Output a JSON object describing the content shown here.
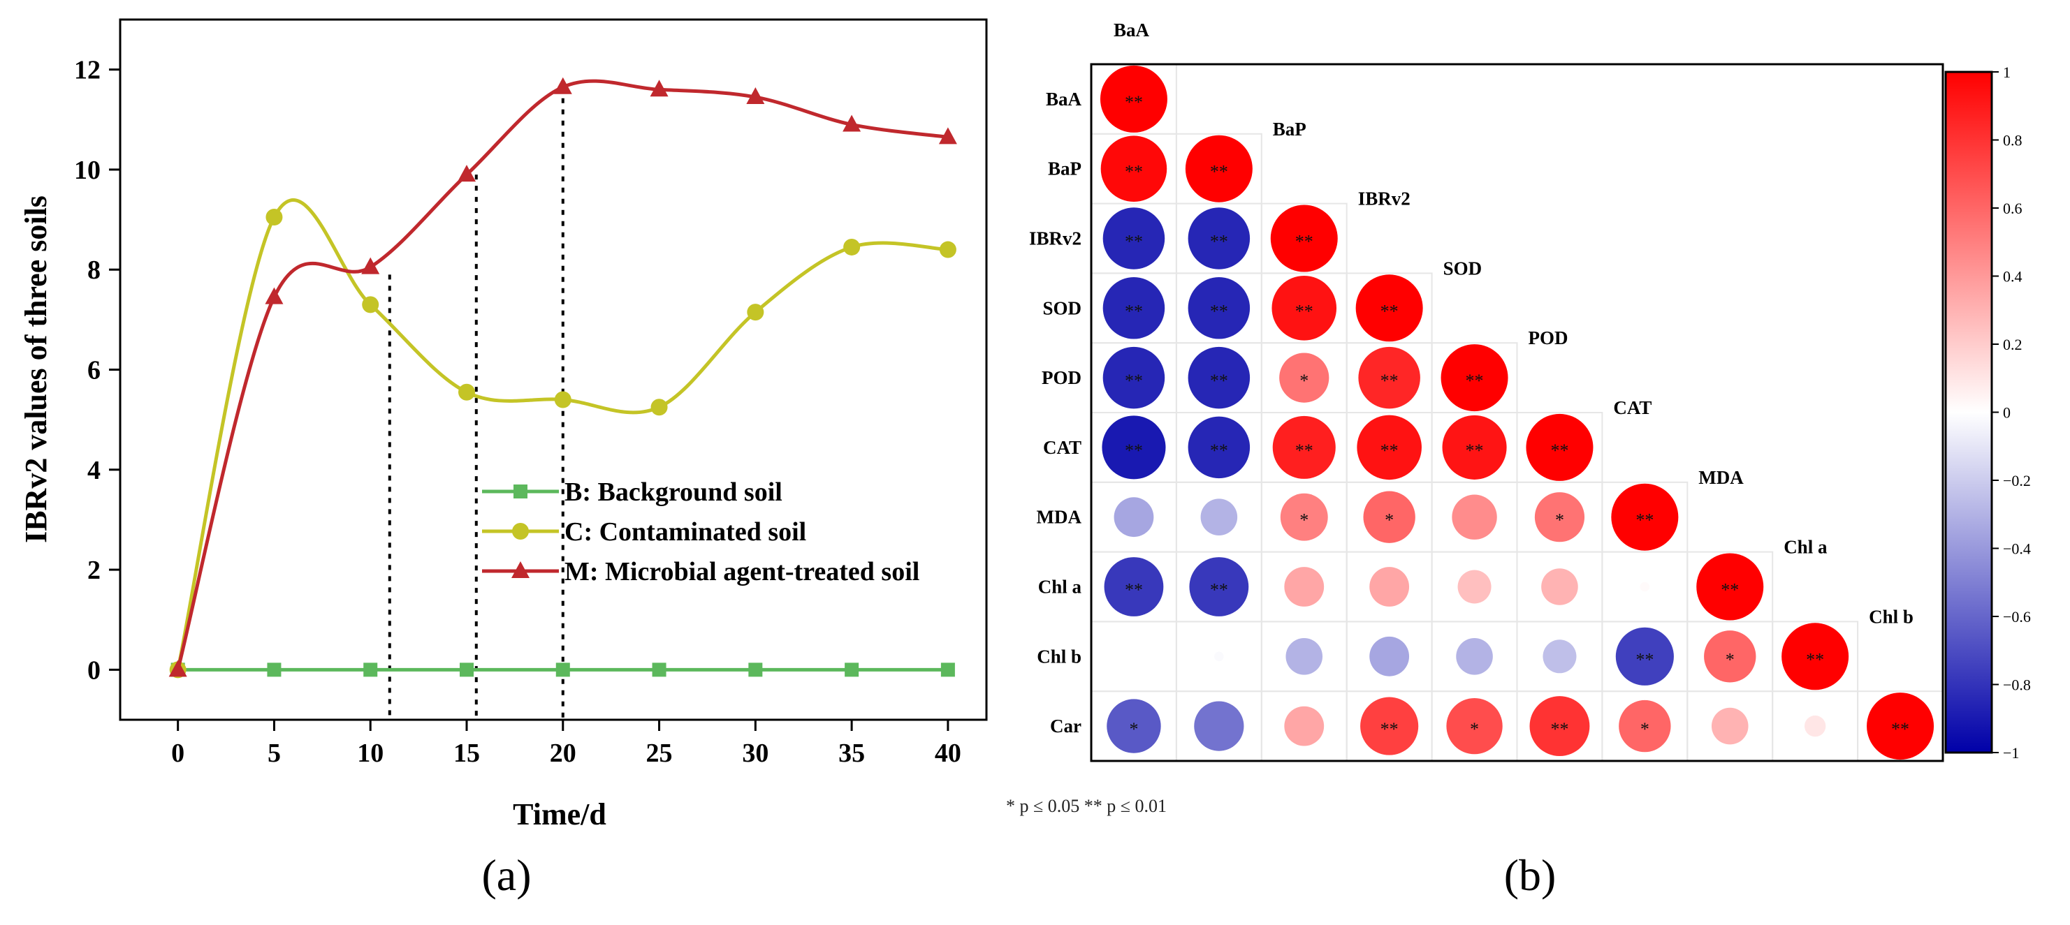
{
  "panels": {
    "a_label": "(a)",
    "b_label": "(b)"
  },
  "chart_data": [
    {
      "type": "line",
      "panel": "(a)",
      "xlabel": "Time/d",
      "ylabel": "IBRv2 values of three soils",
      "xlim": [
        -3,
        42
      ],
      "ylim": [
        -1,
        13
      ],
      "xticks": [
        0,
        5,
        10,
        15,
        20,
        25,
        30,
        35,
        40
      ],
      "yticks": [
        0,
        2,
        4,
        6,
        8,
        10,
        12
      ],
      "x": [
        0,
        5,
        10,
        15,
        20,
        25,
        30,
        35,
        40
      ],
      "legend_position": "center-right",
      "series": [
        {
          "name": "B: Background soil",
          "color": "#5cb85c",
          "marker": "square",
          "values": [
            0,
            0,
            0,
            0,
            0,
            0,
            0,
            0,
            0
          ]
        },
        {
          "name": "C: Contaminated soil",
          "color": "#c4c426",
          "marker": "circle",
          "values": [
            0,
            9.05,
            7.3,
            5.55,
            5.4,
            5.25,
            7.15,
            8.45,
            8.4
          ]
        },
        {
          "name": "M: Microbial agent-treated soil",
          "color": "#c0282d",
          "marker": "triangle",
          "values": [
            0,
            7.45,
            8.05,
            9.9,
            11.65,
            11.6,
            11.45,
            10.9,
            10.65
          ]
        }
      ],
      "reference_lines": [
        {
          "x": 11,
          "y_top": 7.9
        },
        {
          "x": 15.5,
          "y_top": 9.9
        },
        {
          "x": 20,
          "y_top": 11.65
        }
      ]
    },
    {
      "type": "heatmap",
      "panel": "(b)",
      "variables": [
        "BaA",
        "BaP",
        "IBRv2",
        "SOD",
        "POD",
        "CAT",
        "MDA",
        "Chl a",
        "Chl b",
        "Car"
      ],
      "matrix": [
        [
          1
        ],
        [
          0.97,
          1
        ],
        [
          -0.85,
          -0.85,
          1
        ],
        [
          -0.85,
          -0.85,
          0.93,
          1
        ],
        [
          -0.85,
          -0.85,
          0.55,
          0.85,
          1
        ],
        [
          -0.9,
          -0.85,
          0.88,
          0.93,
          0.92,
          1
        ],
        [
          -0.35,
          -0.3,
          0.5,
          0.6,
          0.45,
          0.55,
          1
        ],
        [
          -0.78,
          -0.78,
          0.35,
          0.35,
          0.25,
          0.3,
          0.02,
          1
        ],
        [
          0.0,
          -0.02,
          -0.3,
          -0.35,
          -0.3,
          -0.25,
          -0.75,
          0.6,
          1
        ],
        [
          -0.65,
          -0.55,
          0.35,
          0.75,
          0.7,
          0.8,
          0.6,
          0.3,
          0.1,
          1
        ]
      ],
      "significance": [
        [
          "**"
        ],
        [
          "**",
          "**"
        ],
        [
          "**",
          "**",
          "**"
        ],
        [
          "**",
          "**",
          "**",
          "**"
        ],
        [
          "**",
          "**",
          "*",
          "**",
          "**"
        ],
        [
          "**",
          "**",
          "**",
          "**",
          "**",
          "**"
        ],
        [
          "",
          "",
          "*",
          "*",
          "",
          "*",
          "**"
        ],
        [
          "**",
          "**",
          "",
          "",
          "",
          "",
          "",
          "**"
        ],
        [
          "",
          "",
          "",
          "",
          "",
          "",
          "**",
          "*",
          "**"
        ],
        [
          "*",
          "",
          "",
          "**",
          "*",
          "**",
          "*",
          "",
          "",
          "**"
        ]
      ],
      "colorbar": {
        "range": [
          -1,
          1
        ],
        "ticks": [
          "1",
          "0.8",
          "0.6",
          "0.4",
          "0.2",
          "0",
          "−0.2",
          "−0.4",
          "−0.6",
          "−0.8",
          "−1"
        ],
        "colors": {
          "low": "#0000a8",
          "mid": "#ffffff",
          "high": "#ff0000"
        }
      },
      "footnote": "* p ≤ 0.05   ** p ≤ 0.01"
    }
  ]
}
